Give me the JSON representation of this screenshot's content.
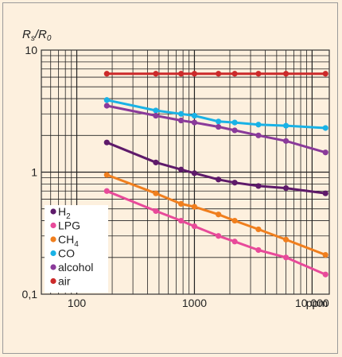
{
  "chart_data": {
    "type": "line",
    "ylabel_main": "R",
    "ylabel_sub1": "s",
    "ylabel_mid": "/R",
    "ylabel_sub2": "0",
    "xunit": "ppm",
    "xscale": "log",
    "yscale": "log",
    "xlim": [
      50,
      14000
    ],
    "ylim": [
      0.1,
      10
    ],
    "xticks": [
      {
        "value": 100,
        "label": "100"
      },
      {
        "value": 1000,
        "label": "1000"
      },
      {
        "value": 10000,
        "label": "10 000"
      }
    ],
    "yticks": [
      {
        "value": 10,
        "label": "10"
      },
      {
        "value": 1,
        "label": "1"
      },
      {
        "value": 0.1,
        "label": "0,1"
      }
    ],
    "grid": true,
    "legend_position": "bottom-left",
    "series": [
      {
        "name": "air",
        "color": "#cc2a2a",
        "x": [
          180,
          470,
          770,
          1000,
          1600,
          2200,
          3500,
          6000,
          13000
        ],
        "y": [
          6.4,
          6.4,
          6.4,
          6.4,
          6.4,
          6.4,
          6.4,
          6.4,
          6.4
        ]
      },
      {
        "name": "CO",
        "color": "#19b2e6",
        "x": [
          180,
          470,
          770,
          1000,
          1600,
          2200,
          3500,
          6000,
          13000
        ],
        "y": [
          3.9,
          3.2,
          3.0,
          2.9,
          2.6,
          2.55,
          2.45,
          2.4,
          2.3
        ]
      },
      {
        "name": "alcohol",
        "color": "#8a3a9a",
        "x": [
          180,
          470,
          770,
          1000,
          1600,
          2200,
          3500,
          6000,
          13000
        ],
        "y": [
          3.5,
          2.9,
          2.65,
          2.55,
          2.35,
          2.2,
          2.0,
          1.8,
          1.45
        ]
      },
      {
        "name": "H",
        "sub": "2",
        "color": "#5e1a6a",
        "x": [
          180,
          470,
          770,
          1000,
          1600,
          2200,
          3500,
          6000,
          13000
        ],
        "y": [
          1.75,
          1.2,
          1.05,
          0.98,
          0.87,
          0.82,
          0.77,
          0.74,
          0.67
        ]
      },
      {
        "name": "CH",
        "sub": "4",
        "color": "#f07f1e",
        "x": [
          180,
          470,
          770,
          1000,
          1600,
          2200,
          3500,
          6000,
          13000
        ],
        "y": [
          0.95,
          0.67,
          0.55,
          0.52,
          0.45,
          0.4,
          0.34,
          0.28,
          0.21
        ]
      },
      {
        "name": "LPG",
        "color": "#e84a9a",
        "x": [
          180,
          470,
          770,
          1000,
          1600,
          2200,
          3500,
          6000,
          13000
        ],
        "y": [
          0.7,
          0.48,
          0.4,
          0.36,
          0.3,
          0.27,
          0.23,
          0.2,
          0.145
        ]
      }
    ],
    "legend_order": [
      "H",
      "LPG",
      "CH",
      "CO",
      "alcohol",
      "air"
    ]
  }
}
